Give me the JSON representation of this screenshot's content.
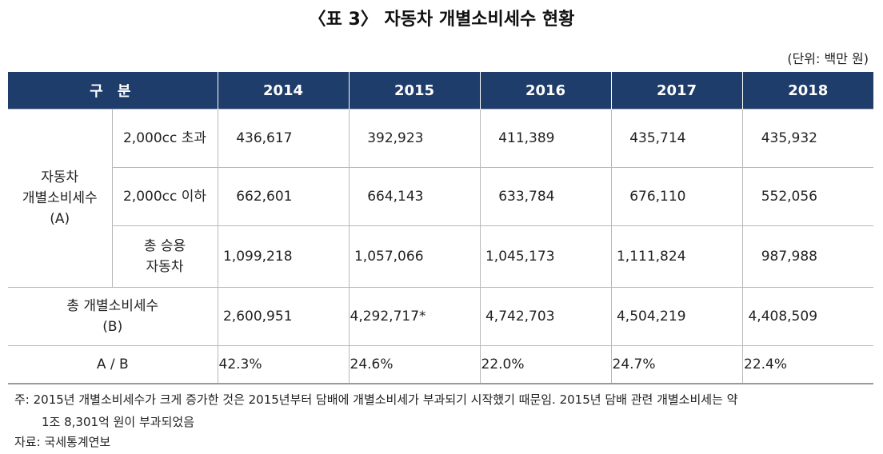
{
  "title": "〈표 3〉 자동차 개별소비세수 현황",
  "unit": "(단위: 백만 원)",
  "table": {
    "header": [
      "구 분",
      "2014",
      "2015",
      "2016",
      "2017",
      "2018"
    ],
    "group_label": [
      "자동차",
      "개별소비세수",
      "(A)"
    ],
    "rows": [
      {
        "label": [
          "2,000cc 초과"
        ],
        "values": [
          "436,617",
          "392,923",
          "411,389",
          "435,714",
          "435,932"
        ]
      },
      {
        "label": [
          "2,000cc 이하"
        ],
        "values": [
          "662,601",
          "664,143",
          "633,784",
          "676,110",
          "552,056"
        ]
      },
      {
        "label": [
          "총 승용",
          "자동차"
        ],
        "values": [
          "1,099,218",
          "1,057,066",
          "1,045,173",
          "1,111,824",
          "987,988"
        ]
      }
    ],
    "total": {
      "label": [
        "총 개별소비세수",
        "(B)"
      ],
      "values": [
        "2,600,951",
        "4,292,717*",
        "4,742,703",
        "4,504,219",
        "4,408,509"
      ]
    },
    "ratio": {
      "label": "A / B",
      "values": [
        "42.3%",
        "24.6%",
        "22.0%",
        "24.7%",
        "22.4%"
      ]
    }
  },
  "note": {
    "line1": "주: 2015년 개별소비세수가 크게 증가한 것은 2015년부터 담배에 개별소비세가 부과되기 시작했기 때문임. 2015년 담배 관련 개별소비세는 약",
    "line2": "1조 8,301억 원이 부과되었음"
  },
  "source": "자료: 국세통계연보"
}
